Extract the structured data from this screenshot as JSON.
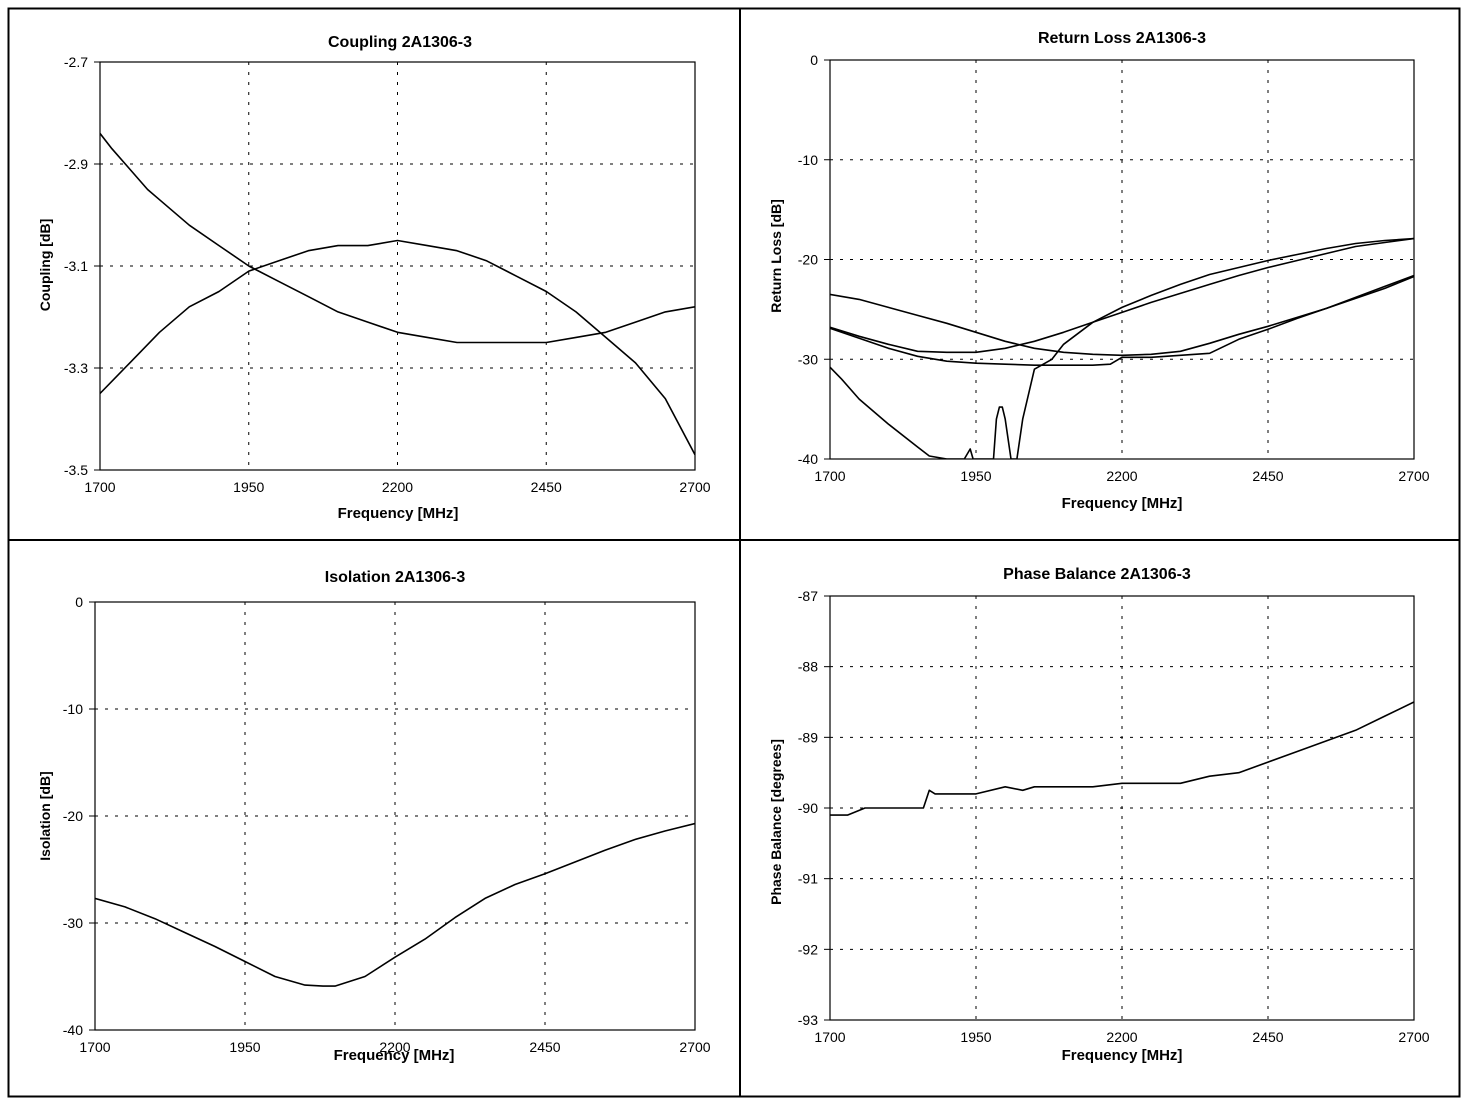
{
  "charts": [
    {
      "type": "line",
      "title": "Coupling 2A1306-3",
      "xlabel": "Frequency [MHz]",
      "ylabel": "Coupling [dB]",
      "xlim": [
        1700,
        2700
      ],
      "ylim": [
        -3.5,
        -2.7
      ],
      "xticks": [
        1700,
        1950,
        2200,
        2450,
        2700
      ],
      "yticks": [
        -2.7,
        -2.9,
        -3.1,
        -3.3,
        -3.5
      ],
      "ytick_labels": [
        "-2.7",
        "-2.9",
        "-3.1",
        "-3.3",
        "-3.5"
      ],
      "grid": true,
      "series": [
        {
          "x": [
            1700,
            1720,
            1750,
            1780,
            1800,
            1850,
            1900,
            1950,
            2000,
            2050,
            2100,
            2150,
            2200,
            2250,
            2300,
            2350,
            2400,
            2450,
            2500,
            2550,
            2600,
            2650,
            2700
          ],
          "y": [
            -2.84,
            -2.87,
            -2.91,
            -2.95,
            -2.97,
            -3.02,
            -3.06,
            -3.1,
            -3.13,
            -3.16,
            -3.19,
            -3.21,
            -3.23,
            -3.24,
            -3.25,
            -3.25,
            -3.25,
            -3.25,
            -3.24,
            -3.23,
            -3.21,
            -3.19,
            -3.18
          ]
        },
        {
          "x": [
            1700,
            1750,
            1800,
            1850,
            1900,
            1950,
            2000,
            2050,
            2100,
            2150,
            2200,
            2250,
            2300,
            2350,
            2400,
            2450,
            2500,
            2550,
            2600,
            2650,
            2700
          ],
          "y": [
            -3.35,
            -3.29,
            -3.23,
            -3.18,
            -3.15,
            -3.11,
            -3.09,
            -3.07,
            -3.06,
            -3.06,
            -3.05,
            -3.06,
            -3.07,
            -3.09,
            -3.12,
            -3.15,
            -3.19,
            -3.24,
            -3.29,
            -3.36,
            -3.47
          ]
        }
      ]
    },
    {
      "type": "line",
      "title": "Return Loss 2A1306-3",
      "xlabel": "Frequency [MHz]",
      "ylabel": "Return Loss [dB]",
      "xlim": [
        1700,
        2700
      ],
      "ylim": [
        -40,
        0
      ],
      "xticks": [
        1700,
        1950,
        2200,
        2450,
        2700
      ],
      "yticks": [
        0,
        -10,
        -20,
        -30,
        -40
      ],
      "ytick_labels": [
        "0",
        "-10",
        "-20",
        "-30",
        "-40"
      ],
      "grid": true,
      "series": [
        {
          "x": [
            1700,
            1750,
            1800,
            1850,
            1900,
            1950,
            2000,
            2050,
            2100,
            2150,
            2200,
            2250,
            2300,
            2350,
            2400,
            2450,
            2500,
            2550,
            2600,
            2650,
            2700
          ],
          "y": [
            -23.5,
            -24.0,
            -24.8,
            -25.6,
            -26.4,
            -27.3,
            -28.2,
            -28.9,
            -29.3,
            -29.5,
            -29.6,
            -29.5,
            -29.2,
            -28.4,
            -27.5,
            -26.7,
            -25.8,
            -24.9,
            -23.9,
            -22.9,
            -21.7
          ]
        },
        {
          "x": [
            1700,
            1750,
            1800,
            1850,
            1900,
            1950,
            2000,
            2050,
            2100,
            2150,
            2200,
            2250,
            2300,
            2350,
            2400,
            2450,
            2500,
            2550,
            2600,
            2650,
            2700
          ],
          "y": [
            -26.8,
            -27.7,
            -28.5,
            -29.2,
            -29.3,
            -29.3,
            -28.9,
            -28.2,
            -27.3,
            -26.3,
            -25.3,
            -24.3,
            -23.4,
            -22.5,
            -21.6,
            -20.8,
            -20.1,
            -19.4,
            -18.7,
            -18.3,
            -17.9
          ]
        },
        {
          "x": [
            1700,
            1750,
            1800,
            1850,
            1900,
            1950,
            2000,
            2050,
            2100,
            2150,
            2180,
            2200,
            2250,
            2300,
            2350,
            2400,
            2450,
            2500,
            2550,
            2600,
            2650,
            2700
          ],
          "y": [
            -26.9,
            -27.9,
            -28.9,
            -29.7,
            -30.2,
            -30.4,
            -30.5,
            -30.6,
            -30.6,
            -30.6,
            -30.5,
            -29.8,
            -29.8,
            -29.6,
            -29.4,
            -28.0,
            -27.0,
            -25.9,
            -24.9,
            -23.8,
            -22.7,
            -21.6
          ]
        },
        {
          "x": [
            1700,
            1720,
            1750,
            1800,
            1850,
            1870,
            1900,
            1930,
            1940,
            1945,
            1950,
            1960,
            1970,
            1980,
            1985,
            1990,
            1995,
            2000,
            2010,
            2020,
            2030,
            2050,
            2080,
            2100,
            2150,
            2200,
            2250,
            2300,
            2350,
            2400,
            2450,
            2500,
            2550,
            2600,
            2650,
            2700
          ],
          "y": [
            -30.8,
            -32.0,
            -34.0,
            -36.5,
            -38.8,
            -39.7,
            -40.0,
            -40.0,
            -39.0,
            -40.0,
            -40.0,
            -40.0,
            -40.0,
            -40.0,
            -36.0,
            -34.8,
            -34.8,
            -36.0,
            -40.0,
            -40.0,
            -36.0,
            -31.0,
            -30.0,
            -28.5,
            -26.3,
            -24.8,
            -23.6,
            -22.5,
            -21.5,
            -20.8,
            -20.1,
            -19.5,
            -18.9,
            -18.4,
            -18.1,
            -17.9
          ]
        }
      ]
    },
    {
      "type": "line",
      "title": "Isolation 2A1306-3",
      "xlabel": "Frequency [MHz]",
      "ylabel": "Isolation [dB]",
      "xlim": [
        1700,
        2700
      ],
      "ylim": [
        -40,
        0
      ],
      "xticks": [
        1700,
        1950,
        2200,
        2450,
        2700
      ],
      "yticks": [
        0,
        -10,
        -20,
        -30,
        -40
      ],
      "ytick_labels": [
        "0",
        "-10",
        "-20",
        "-30",
        "-40"
      ],
      "grid": true,
      "series": [
        {
          "x": [
            1700,
            1750,
            1800,
            1850,
            1900,
            1950,
            2000,
            2050,
            2080,
            2100,
            2150,
            2200,
            2250,
            2300,
            2350,
            2400,
            2450,
            2500,
            2550,
            2600,
            2650,
            2700
          ],
          "y": [
            -27.7,
            -28.5,
            -29.6,
            -30.9,
            -32.2,
            -33.6,
            -35.0,
            -35.8,
            -35.9,
            -35.9,
            -35.0,
            -33.2,
            -31.5,
            -29.5,
            -27.7,
            -26.4,
            -25.4,
            -24.3,
            -23.2,
            -22.2,
            -21.4,
            -20.7
          ]
        }
      ]
    },
    {
      "type": "line",
      "title": "Phase Balance 2A1306-3",
      "xlabel": "Frequency [MHz]",
      "ylabel": "Phase  Balance [degrees]",
      "xlim": [
        1700,
        2700
      ],
      "ylim": [
        -93,
        -87
      ],
      "xticks": [
        1700,
        1950,
        2200,
        2450,
        2700
      ],
      "yticks": [
        -87,
        -88,
        -89,
        -90,
        -91,
        -92,
        -93
      ],
      "ytick_labels": [
        "-87",
        "-88",
        "-89",
        "-90",
        "-91",
        "-92",
        "-93"
      ],
      "grid": true,
      "series": [
        {
          "x": [
            1700,
            1730,
            1760,
            1800,
            1830,
            1860,
            1870,
            1880,
            1900,
            1930,
            1950,
            2000,
            2030,
            2050,
            2100,
            2150,
            2200,
            2250,
            2300,
            2350,
            2400,
            2450,
            2500,
            2550,
            2600,
            2650,
            2700
          ],
          "y": [
            -90.1,
            -90.1,
            -90.0,
            -90.0,
            -90.0,
            -90.0,
            -89.75,
            -89.8,
            -89.8,
            -89.8,
            -89.8,
            -89.7,
            -89.75,
            -89.7,
            -89.7,
            -89.7,
            -89.65,
            -89.65,
            -89.65,
            -89.55,
            -89.5,
            -89.35,
            -89.2,
            -89.05,
            -88.9,
            -88.7,
            -88.5
          ]
        }
      ]
    }
  ]
}
